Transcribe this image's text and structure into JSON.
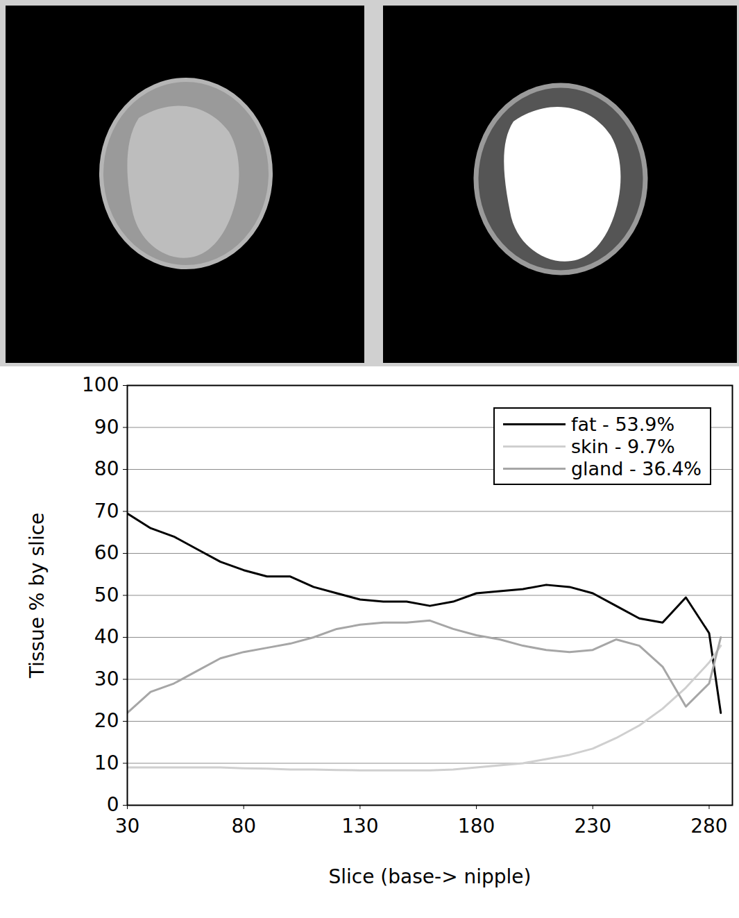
{
  "chart_data": {
    "type": "line",
    "xlabel": "Slice (base-> nipple)",
    "ylabel": "Tissue % by slice",
    "x": [
      30,
      40,
      50,
      60,
      70,
      80,
      90,
      100,
      110,
      120,
      130,
      140,
      150,
      160,
      170,
      180,
      190,
      200,
      210,
      220,
      230,
      240,
      250,
      260,
      270,
      280,
      285
    ],
    "series": [
      {
        "name": "fat - 53.9%",
        "color": "#000000",
        "values": [
          69.5,
          66,
          64,
          61,
          58,
          56,
          54.5,
          54.5,
          52,
          50.5,
          49,
          48.5,
          48.5,
          47.5,
          48.5,
          50.5,
          51,
          51.5,
          52.5,
          52,
          50.5,
          47.5,
          44.5,
          43.5,
          49.5,
          41,
          22
        ]
      },
      {
        "name": "skin - 9.7%",
        "color": "#cfcfcf",
        "values": [
          9,
          9,
          9,
          9,
          9,
          8.8,
          8.7,
          8.5,
          8.5,
          8.4,
          8.3,
          8.3,
          8.3,
          8.3,
          8.5,
          9,
          9.5,
          10,
          11,
          12,
          13.5,
          16,
          19,
          23,
          28,
          34,
          38
        ]
      },
      {
        "name": "gland - 36.4%",
        "color": "#a6a6a6",
        "values": [
          22,
          27,
          29,
          32,
          35,
          36.5,
          37.5,
          38.5,
          40,
          42,
          43,
          43.5,
          43.5,
          44,
          42,
          40.5,
          39.5,
          38,
          37,
          36.5,
          37,
          39.5,
          38,
          33,
          23.5,
          29,
          40
        ]
      }
    ],
    "xlim": [
      30,
      290
    ],
    "xticks": [
      30,
      80,
      130,
      180,
      230,
      280
    ],
    "ylim": [
      0,
      100
    ],
    "yticks": [
      0,
      10,
      20,
      30,
      40,
      50,
      60,
      70,
      80,
      90,
      100
    ],
    "grid": true,
    "legend": "top-right"
  }
}
